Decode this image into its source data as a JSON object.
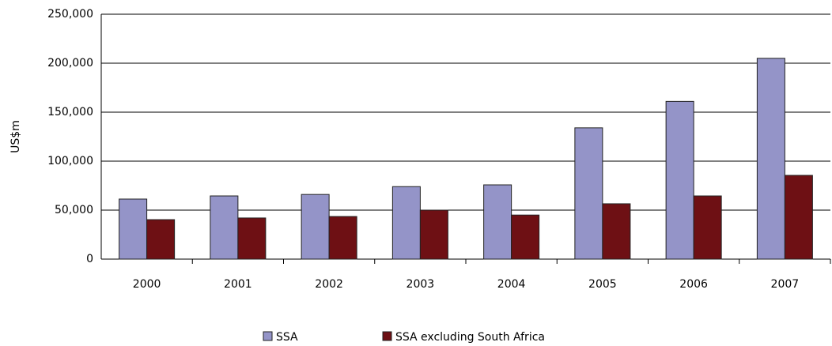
{
  "chart_data": {
    "type": "bar",
    "y_label": "US$m",
    "categories": [
      "2000",
      "2001",
      "2002",
      "2003",
      "2004",
      "2005",
      "2006",
      "2007"
    ],
    "series": [
      {
        "name": "SSA",
        "color": "#9494c8",
        "values": [
          61300,
          64500,
          66000,
          74000,
          75800,
          134000,
          161000,
          205000
        ]
      },
      {
        "name": "SSA excluding South Africa",
        "color": "#6e1014",
        "values": [
          40300,
          42000,
          43500,
          50000,
          45000,
          56500,
          64500,
          85500
        ]
      }
    ],
    "ylim": [
      0,
      250000
    ],
    "yticks": [
      0,
      {
        "value": 50000,
        "label": "50,000"
      },
      {
        "value": 100000,
        "label": "100,000"
      },
      {
        "value": 150000,
        "label": "150,000"
      },
      {
        "value": 200000,
        "label": "200,000"
      },
      {
        "value": 250000,
        "label": "250,000"
      }
    ],
    "grid": true,
    "legend": "bottom"
  }
}
